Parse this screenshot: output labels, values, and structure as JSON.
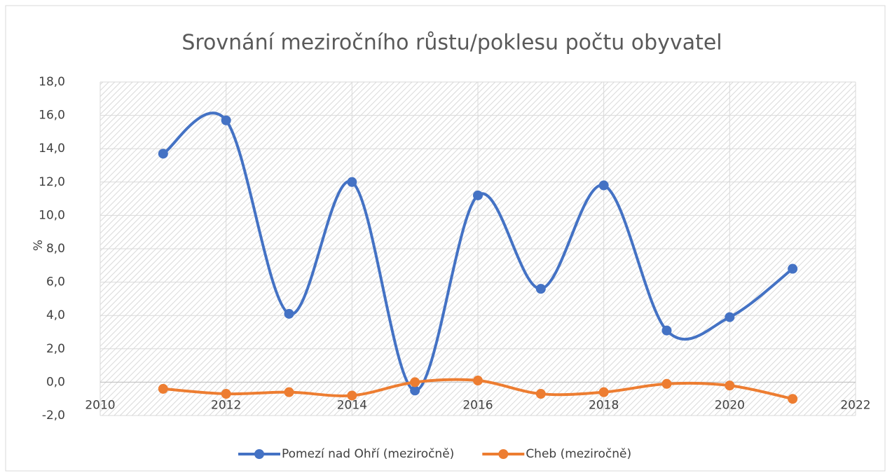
{
  "chart_data": {
    "type": "line",
    "title": "Srovnání meziročního růstu/poklesu počtu obyvatel",
    "y_label": "%",
    "x": [
      2011,
      2012,
      2013,
      2014,
      2015,
      2016,
      2017,
      2018,
      2019,
      2020,
      2021
    ],
    "series": [
      {
        "name": "Pomezí nad Ohří (meziročně)",
        "color": "#4472c4",
        "values": [
          13.7,
          15.7,
          4.1,
          12.0,
          -0.5,
          11.2,
          5.6,
          11.8,
          3.1,
          3.9,
          6.8
        ]
      },
      {
        "name": "Cheb (meziročně)",
        "color": "#ed7d31",
        "values": [
          -0.4,
          -0.7,
          -0.6,
          -0.8,
          0.0,
          0.1,
          -0.7,
          -0.6,
          -0.1,
          -0.2,
          -1.0
        ]
      }
    ],
    "xlim": [
      2010,
      2022
    ],
    "xticks": [
      2010,
      2012,
      2014,
      2016,
      2018,
      2020,
      2022
    ],
    "ylim": [
      -2,
      18
    ],
    "yticks": [
      {
        "value": -2,
        "label": "-2,0"
      },
      {
        "value": 0,
        "label": "0,0"
      },
      {
        "value": 2,
        "label": "2,0"
      },
      {
        "value": 4,
        "label": "4,0"
      },
      {
        "value": 6,
        "label": "6,0"
      },
      {
        "value": 8,
        "label": "8,0"
      },
      {
        "value": 10,
        "label": "10,0"
      },
      {
        "value": 12,
        "label": "12,0"
      },
      {
        "value": 14,
        "label": "14,0"
      },
      {
        "value": 16,
        "label": "16,0"
      },
      {
        "value": 18,
        "label": "18,0"
      }
    ],
    "grid": true,
    "smooth": true,
    "legend": "bottom"
  }
}
